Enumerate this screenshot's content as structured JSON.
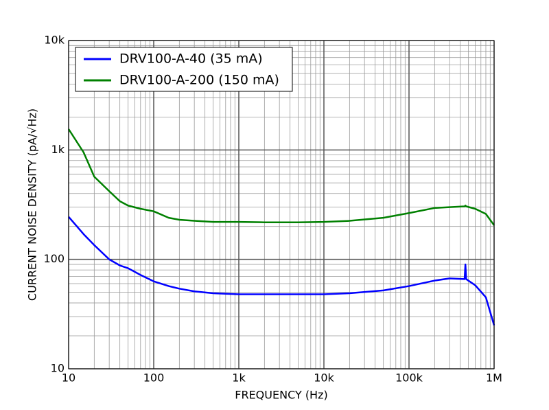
{
  "chart_data": {
    "type": "line",
    "xlabel": "FREQUENCY (Hz)",
    "ylabel": "CURRENT NOISE DENSITY (pA/√Hz)",
    "xscale": "log",
    "yscale": "log",
    "grid": true,
    "legend": "upper left",
    "x": [
      10,
      15,
      20,
      30,
      40,
      50,
      70,
      100,
      150,
      200,
      300,
      500,
      1000,
      2000,
      5000,
      10000,
      20000,
      50000,
      100000,
      200000,
      300000,
      450000,
      460000,
      470000,
      600000,
      800000,
      1000000
    ],
    "series": [
      {
        "name": "DRV100-A-40 (35 mA)",
        "color": "#0000ff",
        "values": [
          245,
          170,
          135,
          100,
          88,
          83,
          72,
          63,
          57,
          54,
          51,
          49,
          48,
          48,
          48,
          48,
          49,
          52,
          57,
          64,
          67,
          66,
          90,
          66,
          58,
          45,
          25
        ]
      },
      {
        "name": "DRV100-A-200 (150 mA)",
        "color": "#008000",
        "values": [
          1550,
          950,
          570,
          420,
          340,
          310,
          290,
          275,
          240,
          230,
          225,
          220,
          220,
          218,
          218,
          220,
          225,
          240,
          265,
          295,
          300,
          305,
          310,
          305,
          290,
          260,
          205
        ]
      }
    ],
    "xlim": [
      10,
      1000000
    ],
    "ylim": [
      10,
      10000
    ],
    "xticks": [
      10,
      100,
      {
        "value": 1000,
        "label": "1k"
      },
      {
        "value": 10000,
        "label": "10k"
      },
      {
        "value": 100000,
        "label": "100k"
      },
      {
        "value": 1000000,
        "label": "1M"
      }
    ],
    "yticks": [
      10,
      100,
      {
        "value": 1000,
        "label": "1k"
      },
      {
        "value": 10000,
        "label": "10k"
      }
    ],
    "xminor": [
      20,
      30,
      40,
      50,
      60,
      70,
      80,
      90,
      200,
      300,
      400,
      500,
      600,
      700,
      800,
      900,
      2000,
      3000,
      4000,
      5000,
      6000,
      7000,
      8000,
      9000,
      20000,
      30000,
      40000,
      50000,
      60000,
      70000,
      80000,
      90000,
      200000,
      300000,
      400000,
      500000,
      600000,
      700000,
      800000,
      900000
    ],
    "yminor": [
      20,
      30,
      40,
      50,
      60,
      70,
      80,
      90,
      200,
      300,
      400,
      500,
      600,
      700,
      800,
      900,
      2000,
      3000,
      4000,
      5000,
      6000,
      7000,
      8000,
      9000
    ]
  }
}
